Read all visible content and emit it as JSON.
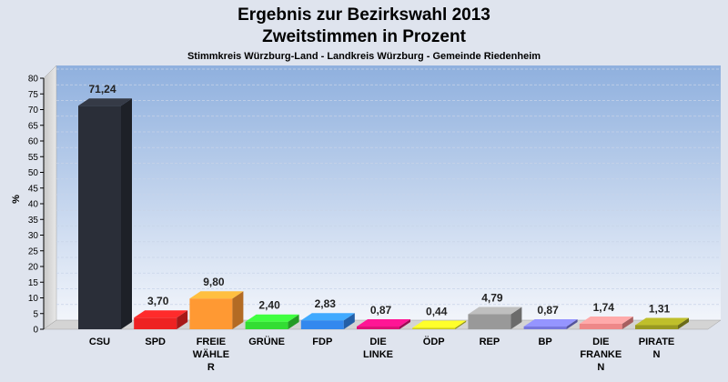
{
  "chart_data": {
    "type": "bar",
    "title": "Ergebnis zur Bezirkswahl 2013",
    "title_line2": "Zweitstimmen in Prozent",
    "subtitle": "Stimmkreis Würzburg-Land - Landkreis Würzburg - Gemeinde Riedenheim",
    "ylabel": "%",
    "ylim": [
      0,
      80
    ],
    "yticks": [
      0,
      5,
      10,
      15,
      20,
      25,
      30,
      35,
      40,
      45,
      50,
      55,
      60,
      65,
      70,
      75,
      80
    ],
    "grid": true,
    "categories": [
      [
        "CSU"
      ],
      [
        "SPD"
      ],
      [
        "FREIE",
        "WÄHLE",
        "R"
      ],
      [
        "GRÜNE"
      ],
      [
        "FDP"
      ],
      [
        "DIE",
        "LINKE"
      ],
      [
        "ÖDP"
      ],
      [
        "REP"
      ],
      [
        "BP"
      ],
      [
        "DIE",
        "FRANKE",
        "N"
      ],
      [
        "PIRATE",
        "N"
      ]
    ],
    "values": [
      71.24,
      3.7,
      9.8,
      2.4,
      2.83,
      0.87,
      0.44,
      4.79,
      0.87,
      1.74,
      1.31
    ],
    "value_labels": [
      "71,24",
      "3,70",
      "9,80",
      "2,40",
      "2,83",
      "0,87",
      "0,44",
      "4,79",
      "0,87",
      "1,74",
      "1,31"
    ],
    "colors": [
      "#2a2e38",
      "#ee2222",
      "#ff9933",
      "#33dd33",
      "#3388ee",
      "#dd1177",
      "#cccc22",
      "#999999",
      "#7777dd",
      "#ee8888",
      "#999922"
    ]
  }
}
